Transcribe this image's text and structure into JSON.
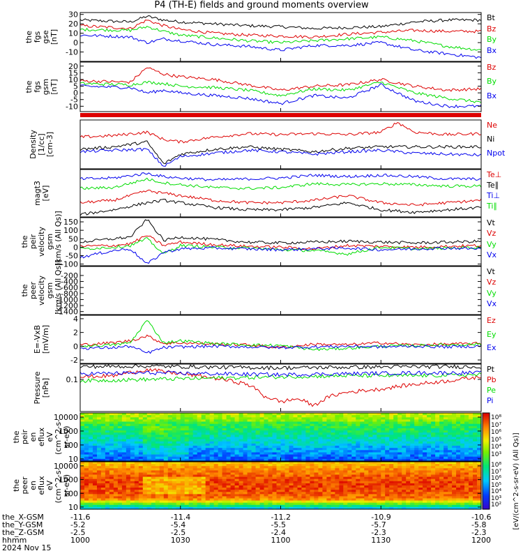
{
  "title": "P4 (TH-E) fields and ground moments overview",
  "footer": {
    "rows": [
      "the_X-GSM",
      "the_Y-GSM",
      "the_Z-GSM",
      "hhmm",
      "2024 Nov 15"
    ],
    "columns": [
      [
        "-11.6",
        "-5.2",
        "-2.5",
        "1000"
      ],
      [
        "-11.4",
        "-5.4",
        "-2.5",
        "1030"
      ],
      [
        "-11.2",
        "-5.5",
        "-2.4",
        "1100"
      ],
      [
        "-10.9",
        "-5.7",
        "-2.3",
        "1130"
      ],
      [
        "-10.6",
        "-5.8",
        "-2.3",
        "1200"
      ]
    ]
  },
  "colors": {
    "black": "#000000",
    "red": "#dd0000",
    "green": "#00dd00",
    "blue": "#0000ee"
  },
  "chart_data": [
    {
      "type": "line",
      "id": "fgs_gse",
      "ylabel": [
        "the",
        "fgs",
        "gse",
        "[nT]"
      ],
      "ylim": [
        -20,
        32
      ],
      "yticks": [
        -10,
        0,
        10,
        20,
        30
      ],
      "series": [
        {
          "name": "Bt",
          "color": "black",
          "x": [
            0,
            15,
            20,
            25,
            30,
            40,
            50,
            60,
            70,
            80,
            90,
            100,
            110,
            120
          ],
          "y": [
            24,
            22,
            28,
            24,
            22,
            20,
            18,
            17,
            15,
            16,
            17,
            22,
            24,
            24
          ]
        },
        {
          "name": "Bz",
          "color": "red",
          "x": [
            0,
            15,
            20,
            25,
            30,
            40,
            50,
            60,
            70,
            80,
            90,
            100,
            110,
            120
          ],
          "y": [
            18,
            15,
            24,
            18,
            14,
            10,
            8,
            7,
            6,
            9,
            11,
            13,
            12,
            12
          ]
        },
        {
          "name": "By",
          "color": "green",
          "x": [
            0,
            15,
            20,
            25,
            30,
            40,
            50,
            60,
            70,
            80,
            90,
            100,
            110,
            120
          ],
          "y": [
            14,
            13,
            17,
            12,
            8,
            5,
            2,
            0,
            2,
            4,
            6,
            2,
            -4,
            -8
          ]
        },
        {
          "name": "Bx",
          "color": "blue",
          "x": [
            0,
            15,
            20,
            25,
            30,
            40,
            50,
            60,
            70,
            80,
            90,
            100,
            110,
            120
          ],
          "y": [
            8,
            6,
            0,
            4,
            2,
            -2,
            -4,
            -8,
            -3,
            -3,
            0,
            -8,
            -12,
            -16
          ]
        }
      ],
      "legend_order": [
        "Bt",
        "Bz",
        "By",
        "Bx"
      ]
    },
    {
      "type": "line",
      "id": "fgs_gsm",
      "ylabel": [
        "the",
        "fgs",
        "gsm",
        "[nT]"
      ],
      "ylim": [
        -14,
        23
      ],
      "yticks": [
        -10,
        -5,
        0,
        5,
        10,
        15,
        20
      ],
      "series": [
        {
          "name": "Bz",
          "color": "red",
          "x": [
            0,
            15,
            20,
            25,
            30,
            40,
            50,
            60,
            70,
            80,
            90,
            100,
            110,
            120
          ],
          "y": [
            9,
            8,
            19,
            14,
            12,
            10,
            6,
            2,
            5,
            6,
            10,
            5,
            2,
            3
          ]
        },
        {
          "name": "By",
          "color": "green",
          "x": [
            0,
            15,
            20,
            25,
            30,
            40,
            50,
            60,
            70,
            80,
            90,
            100,
            110,
            120
          ],
          "y": [
            7,
            6,
            8,
            7,
            5,
            4,
            2,
            -2,
            3,
            2,
            8,
            0,
            -4,
            -7
          ]
        },
        {
          "name": "Bx",
          "color": "blue",
          "x": [
            0,
            15,
            20,
            25,
            30,
            40,
            50,
            60,
            70,
            80,
            90,
            100,
            110,
            120
          ],
          "y": [
            5,
            4,
            0,
            2,
            0,
            -2,
            -4,
            -8,
            -2,
            -4,
            6,
            -6,
            -10,
            -10
          ]
        }
      ],
      "legend_order": [
        "Bz",
        "By",
        "Bx"
      ]
    },
    {
      "type": "line",
      "id": "density",
      "ylabel": [
        "Density",
        "[1/cc]",
        "[cm-3]"
      ],
      "ylim": [
        0,
        1
      ],
      "yticks": [],
      "series": [
        {
          "name": "Ne",
          "color": "red",
          "x": [
            0,
            10,
            20,
            25,
            30,
            40,
            50,
            60,
            70,
            80,
            90,
            95,
            100,
            110,
            120
          ],
          "y": [
            0.65,
            0.68,
            0.75,
            0.6,
            0.55,
            0.65,
            0.72,
            0.7,
            0.72,
            0.7,
            0.75,
            0.95,
            0.75,
            0.7,
            0.72
          ]
        },
        {
          "name": "Ni",
          "color": "black",
          "x": [
            0,
            10,
            20,
            25,
            30,
            40,
            50,
            60,
            70,
            80,
            90,
            100,
            110,
            120
          ],
          "y": [
            0.4,
            0.45,
            0.55,
            0.1,
            0.3,
            0.4,
            0.45,
            0.4,
            0.35,
            0.42,
            0.45,
            0.45,
            0.45,
            0.45
          ]
        },
        {
          "name": "Npot",
          "color": "blue",
          "x": [
            0,
            10,
            20,
            25,
            30,
            40,
            50,
            60,
            70,
            80,
            90,
            100,
            110,
            120
          ],
          "y": [
            0.35,
            0.38,
            0.4,
            0.05,
            0.25,
            0.32,
            0.38,
            0.35,
            0.3,
            0.35,
            0.38,
            0.32,
            0.3,
            0.28
          ]
        }
      ],
      "legend_order": [
        "Ne",
        "Ni",
        "Npot"
      ]
    },
    {
      "type": "line",
      "id": "temperature",
      "ylabel": [
        "magt3",
        "[eV]"
      ],
      "ylim": [
        0,
        1
      ],
      "yticks": [],
      "series": [
        {
          "name": "Te⊥",
          "color": "red",
          "x": [
            0,
            10,
            20,
            25,
            30,
            40,
            50,
            60,
            70,
            80,
            90,
            100,
            110,
            120
          ],
          "y": [
            0.3,
            0.35,
            0.55,
            0.5,
            0.45,
            0.35,
            0.3,
            0.3,
            0.35,
            0.45,
            0.3,
            0.25,
            0.3,
            0.35
          ]
        },
        {
          "name": "Te∥",
          "color": "black",
          "x": [
            0,
            10,
            20,
            25,
            30,
            40,
            50,
            60,
            70,
            80,
            90,
            100,
            110,
            120
          ],
          "y": [
            0.05,
            0.15,
            0.3,
            0.35,
            0.3,
            0.2,
            0.15,
            0.15,
            0.2,
            0.3,
            0.15,
            0.1,
            0.15,
            0.2
          ]
        },
        {
          "name": "Ti⊥",
          "color": "blue",
          "x": [
            0,
            10,
            20,
            25,
            30,
            40,
            50,
            60,
            70,
            80,
            90,
            100,
            110,
            120
          ],
          "y": [
            0.8,
            0.82,
            0.92,
            0.85,
            0.82,
            0.78,
            0.8,
            0.82,
            0.88,
            0.85,
            0.88,
            0.85,
            0.8,
            0.8
          ]
        },
        {
          "name": "Ti∥",
          "color": "green",
          "x": [
            0,
            10,
            20,
            25,
            30,
            40,
            50,
            60,
            70,
            80,
            90,
            100,
            110,
            120
          ],
          "y": [
            0.6,
            0.62,
            0.8,
            0.72,
            0.68,
            0.62,
            0.6,
            0.62,
            0.7,
            0.68,
            0.7,
            0.68,
            0.65,
            0.65
          ]
        }
      ],
      "legend_order": [
        "Te⊥",
        "Te∥",
        "Ti⊥",
        "Ti∥"
      ]
    },
    {
      "type": "line",
      "id": "peir_velocity",
      "ylabel": [
        "the",
        "peir",
        "velocity",
        "gsm",
        "[km/s (All Qs)]"
      ],
      "ylim": [
        -110,
        175
      ],
      "yticks": [
        -100,
        -50,
        0,
        50,
        100,
        150
      ],
      "series": [
        {
          "name": "Vt",
          "color": "black",
          "x": [
            0,
            10,
            15,
            20,
            25,
            30,
            40,
            50,
            60,
            70,
            80,
            90,
            100,
            110,
            120
          ],
          "y": [
            30,
            50,
            60,
            165,
            40,
            60,
            45,
            30,
            25,
            30,
            35,
            30,
            25,
            30,
            35
          ]
        },
        {
          "name": "Vz",
          "color": "red",
          "x": [
            0,
            10,
            15,
            20,
            25,
            30,
            40,
            50,
            60,
            70,
            80,
            90,
            100,
            110,
            120
          ],
          "y": [
            5,
            10,
            20,
            70,
            10,
            30,
            15,
            5,
            0,
            -10,
            10,
            5,
            0,
            5,
            10
          ]
        },
        {
          "name": "Vy",
          "color": "green",
          "x": [
            0,
            10,
            15,
            20,
            25,
            30,
            40,
            50,
            60,
            70,
            80,
            90,
            100,
            110,
            120
          ],
          "y": [
            -10,
            0,
            10,
            50,
            -40,
            10,
            0,
            -5,
            -15,
            -20,
            -40,
            0,
            -10,
            -5,
            0
          ]
        },
        {
          "name": "Vx",
          "color": "blue",
          "x": [
            0,
            10,
            15,
            20,
            25,
            30,
            40,
            50,
            60,
            70,
            80,
            90,
            100,
            110,
            120
          ],
          "y": [
            -60,
            -20,
            -10,
            -100,
            -30,
            -10,
            -5,
            -10,
            -15,
            -10,
            -5,
            -15,
            -10,
            -5,
            -10
          ]
        }
      ],
      "legend_order": [
        "Vt",
        "Vz",
        "Vy",
        "Vx"
      ]
    },
    {
      "type": "line",
      "id": "peer_velocity",
      "ylabel": [
        "the",
        "peer",
        "velocity",
        "gsm",
        "[km/s (All Qs)]"
      ],
      "ylim": [
        -1500,
        100
      ],
      "yticks": [
        -1400,
        -1200,
        -1000,
        -800,
        -600,
        -400,
        -200
      ],
      "series": [],
      "legend_order": [
        "Vt",
        "Vz",
        "Vy",
        "Vx"
      ]
    },
    {
      "type": "line",
      "id": "efield",
      "ylabel": [
        "E=-VxB",
        "[mV/m]"
      ],
      "ylim": [
        -2.5,
        4.5
      ],
      "yticks": [
        -2,
        0,
        2,
        4
      ],
      "series": [
        {
          "name": "Ez",
          "color": "red",
          "x": [
            0,
            10,
            15,
            20,
            25,
            30,
            40,
            50,
            60,
            70,
            80,
            90,
            100,
            110,
            120
          ],
          "y": [
            0.2,
            0.5,
            0.8,
            1.5,
            0.4,
            0.5,
            0.3,
            0.2,
            -0.2,
            0.3,
            0.2,
            0.5,
            0.2,
            0.3,
            0.4
          ]
        },
        {
          "name": "Ey",
          "color": "green",
          "x": [
            0,
            10,
            15,
            20,
            25,
            30,
            40,
            50,
            60,
            70,
            80,
            90,
            100,
            110,
            120
          ],
          "y": [
            0,
            0.2,
            0.5,
            3.8,
            0.5,
            0.8,
            0.4,
            0.2,
            0.1,
            -0.5,
            -0.3,
            0,
            0.1,
            0.2,
            0.3
          ]
        },
        {
          "name": "Ex",
          "color": "blue",
          "x": [
            0,
            10,
            15,
            20,
            25,
            30,
            40,
            50,
            60,
            70,
            80,
            90,
            100,
            110,
            120
          ],
          "y": [
            -0.3,
            -0.2,
            0,
            -1,
            -0.2,
            -0.1,
            0,
            -0.1,
            -0.2,
            -0.1,
            0,
            -0.1,
            0,
            -0.1,
            0
          ]
        }
      ],
      "legend_order": [
        "Ez",
        "Ey",
        "Ex"
      ]
    },
    {
      "type": "line",
      "id": "pressure",
      "ylabel": [
        "Pressure",
        "[nPa]"
      ],
      "ylim": [
        0.01,
        0.3
      ],
      "yscale": "log",
      "yticks": [
        0.1
      ],
      "ytick_labels": [
        "0.1"
      ],
      "series": [
        {
          "name": "Pt",
          "color": "black",
          "x": [
            0,
            20,
            40,
            60,
            80,
            100,
            120
          ],
          "y": [
            0.25,
            0.26,
            0.24,
            0.23,
            0.24,
            0.25,
            0.25
          ]
        },
        {
          "name": "Pb",
          "color": "red",
          "x": [
            0,
            10,
            20,
            30,
            40,
            50,
            55,
            60,
            65,
            70,
            75,
            80,
            90,
            100,
            110,
            120
          ],
          "y": [
            0.12,
            0.13,
            0.2,
            0.15,
            0.11,
            0.07,
            0.03,
            0.02,
            0.025,
            0.015,
            0.03,
            0.04,
            0.05,
            0.07,
            0.09,
            0.12
          ]
        },
        {
          "name": "Pe",
          "color": "green",
          "x": [
            0,
            20,
            40,
            60,
            80,
            100,
            120
          ],
          "y": [
            0.09,
            0.1,
            0.11,
            0.12,
            0.13,
            0.13,
            0.14
          ]
        },
        {
          "name": "Pi",
          "color": "blue",
          "x": [
            0,
            20,
            40,
            60,
            80,
            100,
            120
          ],
          "y": [
            0.15,
            0.16,
            0.15,
            0.14,
            0.15,
            0.16,
            0.16
          ]
        }
      ],
      "legend_order": [
        "Pt",
        "Pb",
        "Pe",
        "Pi"
      ]
    },
    {
      "type": "heatmap",
      "id": "peir_spectrogram",
      "ylabel": [
        "the",
        "peir",
        "en",
        "eflux",
        "eV",
        "(cm^2-s-",
        "sr-eV)"
      ],
      "ylim": [
        7,
        20000
      ],
      "yscale": "log",
      "yticks": [
        10,
        100,
        1000,
        10000
      ],
      "ytick_labels": [
        "10",
        "100",
        "1000",
        "10000"
      ]
    },
    {
      "type": "heatmap",
      "id": "peer_spectrogram",
      "ylabel": [
        "the",
        "peer",
        "en",
        "eflux",
        "eV",
        "(cm^2-s-",
        "sr-eV)"
      ],
      "ylim": [
        7,
        20000
      ],
      "yscale": "log",
      "yticks": [
        10,
        100,
        1000,
        10000
      ],
      "ytick_labels": [
        "10",
        "100",
        "1000",
        "10000"
      ]
    }
  ],
  "colorbar": {
    "title": "[eV/(cm^2-s-sr-eV) (All Qs)]",
    "ticks_upper": [
      "10^8",
      "10^7",
      "10^6",
      "10^5",
      "10^4",
      "10^3"
    ],
    "ticks_lower": [
      "10^8",
      "10^7",
      "10^6",
      "10^5",
      "10^4",
      "10^3",
      "10^2"
    ]
  }
}
